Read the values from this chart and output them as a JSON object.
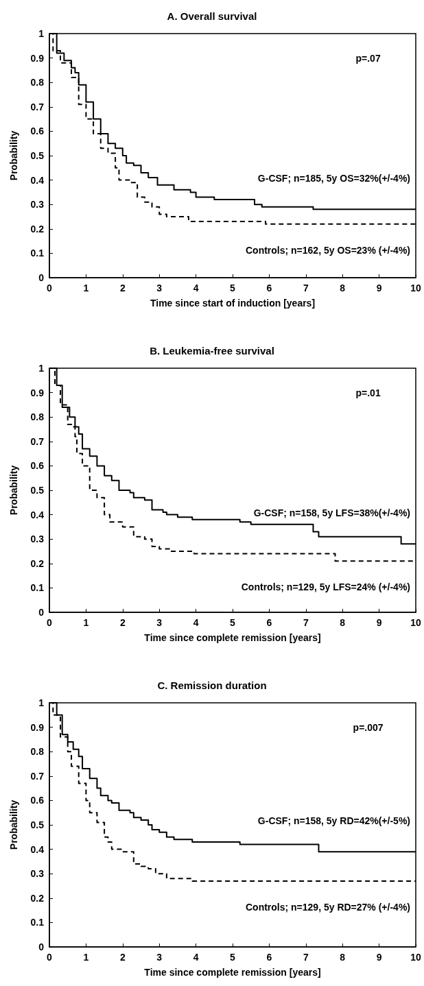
{
  "chart_data": [
    {
      "type": "step",
      "title": "A. Overall survival",
      "xlabel": "Time since start of induction [years]",
      "ylabel": "Probability",
      "xlim": [
        0,
        10
      ],
      "xticks": [
        0,
        1,
        2,
        3,
        4,
        5,
        6,
        7,
        8,
        9,
        10
      ],
      "ylim": [
        0,
        1
      ],
      "yticks": [
        0,
        0.1,
        0.2,
        0.3,
        0.4,
        0.5,
        0.6,
        0.7,
        0.8,
        0.9,
        1
      ],
      "annotations": [
        "p=.07"
      ],
      "series": [
        {
          "name": "G-CSF; n=185, 5y OS=32%(+/-4%)",
          "color": "#000000",
          "line_style": "solid",
          "x": [
            0,
            0.2,
            0.4,
            0.6,
            0.7,
            0.8,
            1.0,
            1.2,
            1.4,
            1.6,
            1.8,
            2.0,
            2.1,
            2.3,
            2.5,
            2.7,
            2.95,
            3.4,
            3.85,
            4.0,
            4.5,
            5.6,
            5.8,
            7.2,
            10
          ],
          "values": [
            1,
            0.92,
            0.89,
            0.86,
            0.84,
            0.79,
            0.72,
            0.65,
            0.59,
            0.55,
            0.53,
            0.5,
            0.47,
            0.46,
            0.43,
            0.41,
            0.38,
            0.36,
            0.35,
            0.33,
            0.32,
            0.3,
            0.29,
            0.28,
            0.28
          ]
        },
        {
          "name": "Controls; n=162, 5y OS=23% (+/-4%)",
          "color": "#000000",
          "line_style": "dashed",
          "x": [
            0,
            0.1,
            0.3,
            0.6,
            0.8,
            1.0,
            1.2,
            1.4,
            1.6,
            1.8,
            1.9,
            2.2,
            2.4,
            2.6,
            2.8,
            3.0,
            3.2,
            3.8,
            5.9,
            10
          ],
          "values": [
            1,
            0.93,
            0.88,
            0.82,
            0.71,
            0.65,
            0.59,
            0.53,
            0.51,
            0.45,
            0.4,
            0.39,
            0.33,
            0.31,
            0.29,
            0.26,
            0.25,
            0.23,
            0.22,
            0.22
          ]
        }
      ]
    },
    {
      "type": "step",
      "title": "B. Leukemia-free survival",
      "xlabel": "Time since complete remission [years]",
      "ylabel": "Probability",
      "xlim": [
        0,
        10
      ],
      "xticks": [
        0,
        1,
        2,
        3,
        4,
        5,
        6,
        7,
        8,
        9,
        10
      ],
      "ylim": [
        0,
        1
      ],
      "yticks": [
        0,
        0.1,
        0.2,
        0.3,
        0.4,
        0.5,
        0.6,
        0.7,
        0.8,
        0.9,
        1
      ],
      "annotations": [
        "p=.01"
      ],
      "series": [
        {
          "name": "G-CSF; n=158, 5y LFS=38%(+/-4%)",
          "color": "#000000",
          "line_style": "solid",
          "x": [
            0,
            0.2,
            0.35,
            0.55,
            0.7,
            0.8,
            0.9,
            1.1,
            1.3,
            1.5,
            1.7,
            1.9,
            2.2,
            2.3,
            2.6,
            2.8,
            3.1,
            3.2,
            3.5,
            3.9,
            5.2,
            5.5,
            7.2,
            7.35,
            9.6,
            10
          ],
          "values": [
            1,
            0.93,
            0.84,
            0.8,
            0.76,
            0.73,
            0.67,
            0.64,
            0.6,
            0.56,
            0.54,
            0.5,
            0.49,
            0.47,
            0.46,
            0.42,
            0.41,
            0.4,
            0.39,
            0.38,
            0.37,
            0.36,
            0.33,
            0.31,
            0.28,
            0.28
          ]
        },
        {
          "name": "Controls; n=129, 5y LFS=24% (+/-4%)",
          "color": "#000000",
          "line_style": "dashed",
          "x": [
            0,
            0.15,
            0.3,
            0.5,
            0.6,
            0.7,
            0.75,
            0.9,
            1.1,
            1.3,
            1.5,
            1.65,
            2.0,
            2.3,
            2.6,
            2.8,
            3.0,
            3.3,
            3.95,
            7.8,
            10
          ],
          "values": [
            1,
            0.93,
            0.85,
            0.77,
            0.76,
            0.72,
            0.65,
            0.6,
            0.5,
            0.47,
            0.4,
            0.37,
            0.35,
            0.31,
            0.3,
            0.27,
            0.26,
            0.25,
            0.24,
            0.21,
            0.21
          ]
        }
      ]
    },
    {
      "type": "step",
      "title": "C. Remission duration",
      "xlabel": "Time since complete remission [years]",
      "ylabel": "Probability",
      "xlim": [
        0,
        10
      ],
      "xticks": [
        0,
        1,
        2,
        3,
        4,
        5,
        6,
        7,
        8,
        9,
        10
      ],
      "ylim": [
        0,
        1
      ],
      "yticks": [
        0,
        0.1,
        0.2,
        0.3,
        0.4,
        0.5,
        0.6,
        0.7,
        0.8,
        0.9,
        1
      ],
      "annotations": [
        "p=.007"
      ],
      "series": [
        {
          "name": "G-CSF; n=158, 5y RD=42%(+/-5%)",
          "color": "#000000",
          "line_style": "solid",
          "x": [
            0,
            0.2,
            0.35,
            0.5,
            0.65,
            0.8,
            0.9,
            1.1,
            1.3,
            1.4,
            1.6,
            1.7,
            1.9,
            2.2,
            2.3,
            2.5,
            2.7,
            2.8,
            3.0,
            3.2,
            3.4,
            3.9,
            5.2,
            7.35,
            10
          ],
          "values": [
            1,
            0.95,
            0.87,
            0.84,
            0.81,
            0.78,
            0.73,
            0.69,
            0.65,
            0.62,
            0.6,
            0.59,
            0.56,
            0.55,
            0.53,
            0.52,
            0.5,
            0.48,
            0.47,
            0.45,
            0.44,
            0.43,
            0.42,
            0.39,
            0.39
          ]
        },
        {
          "name": "Controls; n=129, 5y RD=27% (+/-4%)",
          "color": "#000000",
          "line_style": "dashed",
          "x": [
            0,
            0.1,
            0.3,
            0.5,
            0.6,
            0.8,
            1.0,
            1.1,
            1.3,
            1.5,
            1.6,
            1.7,
            2.0,
            2.3,
            2.5,
            2.7,
            2.9,
            3.2,
            3.9,
            10
          ],
          "values": [
            1,
            0.95,
            0.86,
            0.8,
            0.74,
            0.67,
            0.6,
            0.55,
            0.51,
            0.45,
            0.43,
            0.4,
            0.39,
            0.34,
            0.33,
            0.32,
            0.3,
            0.28,
            0.27,
            0.27
          ]
        }
      ]
    }
  ]
}
